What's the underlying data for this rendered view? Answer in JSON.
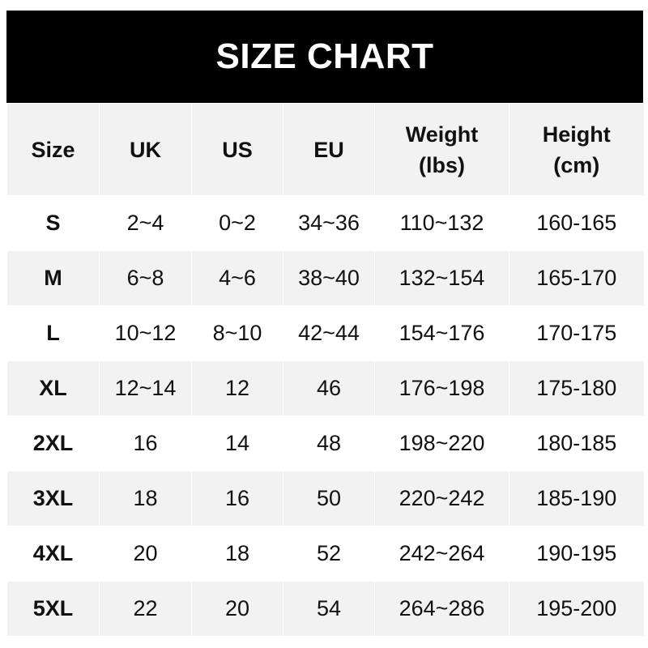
{
  "title": "SIZE CHART",
  "chart_data": {
    "type": "table",
    "title": "SIZE CHART",
    "columns": [
      [
        "Size"
      ],
      [
        "UK"
      ],
      [
        "US"
      ],
      [
        "EU"
      ],
      [
        "Weight",
        "(lbs)"
      ],
      [
        "Height",
        "(cm)"
      ]
    ],
    "rows": [
      [
        "S",
        "2~4",
        "0~2",
        "34~36",
        "110~132",
        "160-165"
      ],
      [
        "M",
        "6~8",
        "4~6",
        "38~40",
        "132~154",
        "165-170"
      ],
      [
        "L",
        "10~12",
        "8~10",
        "42~44",
        "154~176",
        "170-175"
      ],
      [
        "XL",
        "12~14",
        "12",
        "46",
        "176~198",
        "175-180"
      ],
      [
        "2XL",
        "16",
        "14",
        "48",
        "198~220",
        "180-185"
      ],
      [
        "3XL",
        "18",
        "16",
        "50",
        "220~242",
        "185-190"
      ],
      [
        "4XL",
        "20",
        "18",
        "52",
        "242~264",
        "190-195"
      ],
      [
        "5XL",
        "22",
        "20",
        "54",
        "264~286",
        "195-200"
      ]
    ]
  },
  "colors": {
    "title_bg": "#000000",
    "title_text": "#ffffff",
    "stripe": "#f2f2f2",
    "text": "#111111"
  }
}
